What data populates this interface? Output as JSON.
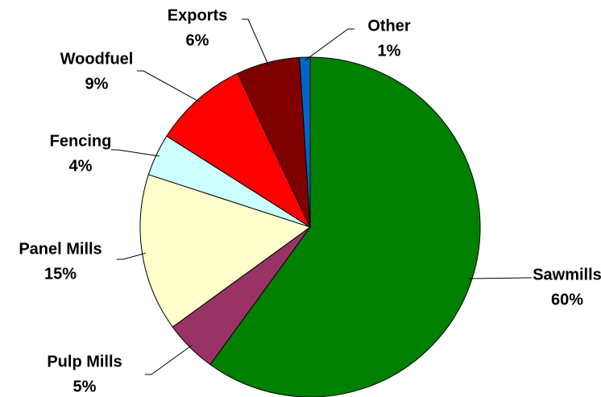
{
  "chart_data": {
    "type": "pie",
    "categories": [
      "Sawmills",
      "Pulp Mills",
      "Panel Mills",
      "Fencing",
      "Woodfuel",
      "Exports",
      "Other"
    ],
    "values": [
      60,
      5,
      15,
      4,
      9,
      6,
      1
    ],
    "value_labels": [
      "60%",
      "5%",
      "15%",
      "4%",
      "9%",
      "6%",
      "1%"
    ],
    "colors": [
      "#008000",
      "#993366",
      "#FFFFCC",
      "#CCFFFF",
      "#FF0000",
      "#800000",
      "#0066CC"
    ]
  }
}
